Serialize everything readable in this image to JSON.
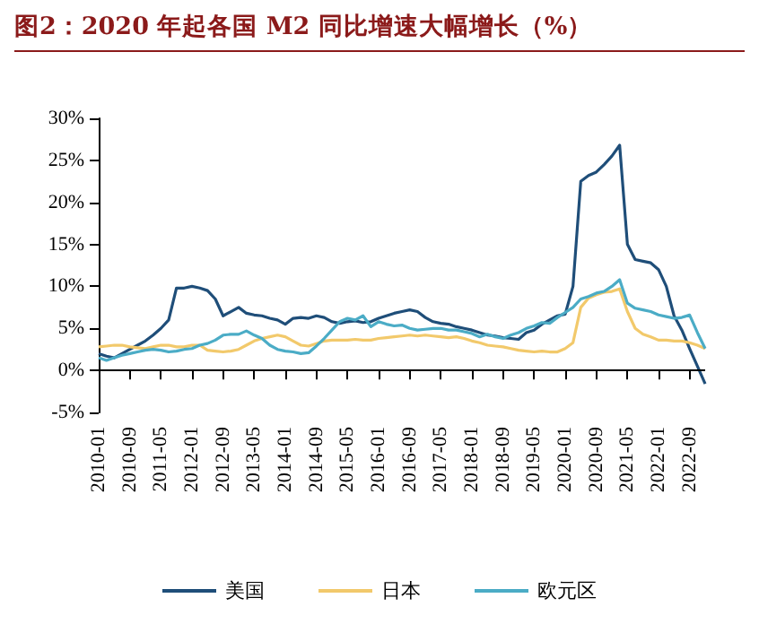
{
  "chart_data": {
    "type": "line",
    "title": "图2：2020 年起各国 M2 同比增速大幅增长（%）",
    "categories": [
      "2010-01",
      null,
      null,
      null,
      "2010-09",
      null,
      null,
      null,
      "2011-05",
      null,
      null,
      null,
      "2012-01",
      null,
      null,
      null,
      "2012-09",
      null,
      null,
      null,
      "2013-05",
      null,
      null,
      null,
      "2014-01",
      null,
      null,
      null,
      "2014-09",
      null,
      null,
      null,
      "2015-05",
      null,
      null,
      null,
      "2016-01",
      null,
      null,
      null,
      "2016-09",
      null,
      null,
      null,
      "2017-05",
      null,
      null,
      null,
      "2018-01",
      null,
      null,
      null,
      "2018-09",
      null,
      null,
      null,
      "2019-05",
      null,
      null,
      null,
      "2020-01",
      null,
      null,
      null,
      "2020-09",
      null,
      null,
      null,
      "2021-05",
      null,
      null,
      null,
      "2022-01",
      null,
      null,
      null,
      "2022-09",
      null,
      null
    ],
    "series": [
      {
        "name": "美国",
        "color": "#1f4e79",
        "values": [
          2.0,
          1.7,
          1.5,
          2.0,
          2.5,
          3.0,
          3.5,
          4.2,
          5.0,
          6.0,
          9.8,
          9.8,
          10.0,
          9.8,
          9.5,
          8.5,
          6.5,
          7.0,
          7.5,
          6.8,
          6.6,
          6.5,
          6.2,
          6.0,
          5.5,
          6.2,
          6.3,
          6.2,
          6.5,
          6.3,
          5.8,
          5.6,
          5.8,
          5.9,
          5.7,
          5.8,
          6.2,
          6.5,
          6.8,
          7.0,
          7.2,
          7.0,
          6.3,
          5.8,
          5.6,
          5.5,
          5.2,
          5.0,
          4.8,
          4.5,
          4.2,
          4.1,
          3.9,
          3.8,
          3.7,
          4.5,
          4.8,
          5.5,
          6.0,
          6.5,
          6.7,
          10.0,
          22.5,
          23.2,
          23.6,
          24.5,
          25.5,
          26.8,
          15.0,
          13.2,
          13.0,
          12.8,
          12.0,
          10.0,
          6.5,
          4.8,
          2.6,
          0.5,
          -1.6
        ]
      },
      {
        "name": "日本",
        "color": "#f2c96b",
        "values": [
          2.8,
          2.9,
          3.0,
          3.0,
          2.8,
          2.7,
          2.6,
          2.8,
          3.0,
          3.0,
          2.8,
          2.8,
          3.0,
          3.0,
          2.4,
          2.3,
          2.2,
          2.3,
          2.5,
          3.0,
          3.5,
          3.8,
          4.0,
          4.2,
          4.0,
          3.5,
          3.0,
          2.9,
          3.2,
          3.5,
          3.6,
          3.6,
          3.6,
          3.7,
          3.6,
          3.6,
          3.8,
          3.9,
          4.0,
          4.1,
          4.2,
          4.1,
          4.2,
          4.1,
          4.0,
          3.9,
          4.0,
          3.8,
          3.5,
          3.3,
          3.0,
          2.9,
          2.8,
          2.6,
          2.4,
          2.3,
          2.2,
          2.3,
          2.2,
          2.2,
          2.6,
          3.3,
          7.5,
          8.6,
          9.0,
          9.3,
          9.4,
          9.7,
          7.0,
          5.0,
          4.3,
          4.0,
          3.6,
          3.6,
          3.5,
          3.5,
          3.3,
          3.0,
          2.6
        ]
      },
      {
        "name": "欧元区",
        "color": "#4bacc6",
        "values": [
          1.5,
          1.2,
          1.5,
          1.8,
          2.0,
          2.2,
          2.4,
          2.5,
          2.4,
          2.2,
          2.3,
          2.5,
          2.6,
          3.0,
          3.2,
          3.6,
          4.2,
          4.3,
          4.3,
          4.7,
          4.2,
          3.8,
          3.0,
          2.5,
          2.3,
          2.2,
          2.0,
          2.1,
          2.9,
          3.8,
          4.8,
          5.8,
          6.2,
          6.0,
          6.5,
          5.2,
          5.8,
          5.5,
          5.3,
          5.4,
          5.0,
          4.8,
          4.9,
          5.0,
          5.0,
          4.8,
          4.8,
          4.6,
          4.4,
          4.0,
          4.3,
          4.0,
          3.8,
          4.2,
          4.5,
          5.0,
          5.3,
          5.7,
          5.6,
          6.3,
          6.9,
          7.5,
          8.5,
          8.8,
          9.2,
          9.4,
          10.0,
          10.8,
          8.0,
          7.4,
          7.2,
          7.0,
          6.6,
          6.4,
          6.2,
          6.3,
          6.6,
          4.5,
          2.6
        ]
      }
    ],
    "ylim": [
      -5,
      30
    ],
    "yticks": [
      {
        "value": -5,
        "label": "-5%"
      },
      {
        "value": 0,
        "label": "0%"
      },
      {
        "value": 5,
        "label": "5%"
      },
      {
        "value": 10,
        "label": "10%"
      },
      {
        "value": 15,
        "label": "15%"
      },
      {
        "value": 20,
        "label": "20%"
      },
      {
        "value": 25,
        "label": "25%"
      },
      {
        "value": 30,
        "label": "30%"
      }
    ],
    "ref_lines": [
      {
        "axis": "y",
        "value": 0,
        "color": "#000000",
        "line_style": "solid"
      }
    ],
    "grid": false,
    "legend": "bottom",
    "marker": "none",
    "line_style": "solid"
  }
}
